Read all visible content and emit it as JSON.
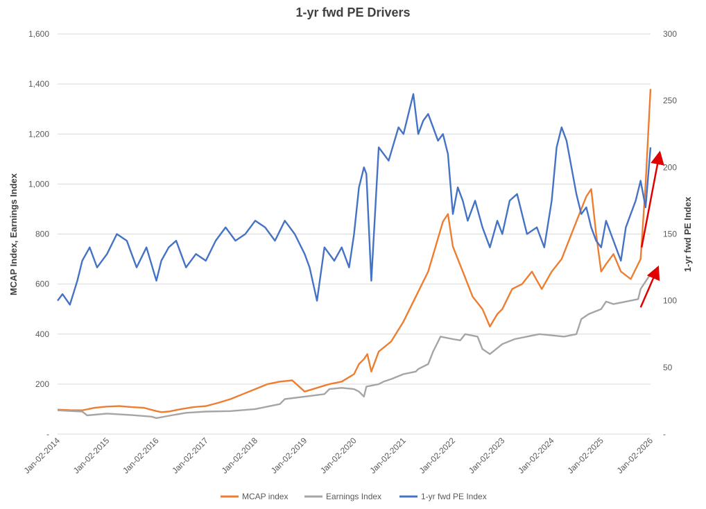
{
  "chart_data": {
    "type": "line",
    "title": "1-yr fwd PE Drivers",
    "ylabel_left": "MCAP Index, Earnings Index",
    "ylabel_right": "1-yr fwd PE Index",
    "xlabel": "",
    "grid": true,
    "legend_position": "bottom",
    "x_ticks": [
      "Jan-02-2014",
      "Jan-02-2015",
      "Jan-02-2016",
      "Jan-02-2017",
      "Jan-02-2018",
      "Jan-02-2019",
      "Jan-02-2020",
      "Jan-02-2021",
      "Jan-02-2022",
      "Jan-02-2023",
      "Jan-02-2024",
      "Jan-02-2025",
      "Jan-02-2026"
    ],
    "y_left": {
      "ticks": [
        "-",
        "200",
        "400",
        "600",
        "800",
        "1,000",
        "1,200",
        "1,400",
        "1,600"
      ],
      "ylim": [
        0,
        1600
      ]
    },
    "y_right": {
      "ticks": [
        "-",
        "50",
        "100",
        "150",
        "200",
        "250",
        "300"
      ],
      "ylim": [
        0,
        300
      ]
    },
    "x_range": [
      2014.0,
      2026.0
    ],
    "series": [
      {
        "name": "MCAP index",
        "axis": "left",
        "color": "#ED7D31",
        "x": [
          2014.0,
          2014.25,
          2014.5,
          2014.75,
          2015.0,
          2015.25,
          2015.5,
          2015.75,
          2016.0,
          2016.1,
          2016.25,
          2016.5,
          2016.75,
          2017.0,
          2017.25,
          2017.5,
          2017.75,
          2018.0,
          2018.25,
          2018.5,
          2018.75,
          2019.0,
          2019.25,
          2019.5,
          2019.75,
          2020.0,
          2020.1,
          2020.2,
          2020.27,
          2020.35,
          2020.5,
          2020.75,
          2021.0,
          2021.25,
          2021.5,
          2021.65,
          2021.8,
          2021.9,
          2022.0,
          2022.2,
          2022.4,
          2022.6,
          2022.75,
          2022.9,
          2023.0,
          2023.2,
          2023.4,
          2023.6,
          2023.8,
          2024.0,
          2024.2,
          2024.4,
          2024.6,
          2024.7,
          2024.8,
          2024.9,
          2025.0,
          2025.1,
          2025.25,
          2025.4,
          2025.6,
          2025.8,
          2025.9,
          2026.0
        ],
        "values": [
          98,
          96,
          95,
          105,
          110,
          112,
          108,
          105,
          92,
          88,
          90,
          100,
          108,
          112,
          125,
          140,
          160,
          180,
          200,
          210,
          215,
          170,
          185,
          200,
          210,
          240,
          280,
          300,
          320,
          250,
          330,
          370,
          450,
          550,
          650,
          750,
          850,
          880,
          750,
          650,
          550,
          500,
          430,
          480,
          500,
          580,
          600,
          650,
          580,
          650,
          700,
          800,
          900,
          950,
          980,
          800,
          650,
          680,
          720,
          650,
          620,
          700,
          1000,
          1380
        ]
      },
      {
        "name": "Earnings Index",
        "axis": "left",
        "color": "#A5A5A5",
        "x": [
          2014.0,
          2014.5,
          2014.6,
          2015.0,
          2015.5,
          2015.9,
          2016.0,
          2016.3,
          2016.6,
          2017.0,
          2017.5,
          2018.0,
          2018.5,
          2018.6,
          2019.0,
          2019.4,
          2019.5,
          2019.75,
          2020.0,
          2020.1,
          2020.2,
          2020.25,
          2020.5,
          2020.6,
          2020.75,
          2021.0,
          2021.25,
          2021.3,
          2021.5,
          2021.6,
          2021.75,
          2022.0,
          2022.15,
          2022.25,
          2022.5,
          2022.6,
          2022.75,
          2023.0,
          2023.25,
          2023.5,
          2023.75,
          2024.0,
          2024.25,
          2024.5,
          2024.6,
          2024.75,
          2025.0,
          2025.1,
          2025.25,
          2025.5,
          2025.75,
          2025.8,
          2026.0
        ],
        "values": [
          95,
          90,
          75,
          82,
          76,
          70,
          64,
          75,
          85,
          90,
          92,
          100,
          120,
          140,
          150,
          160,
          180,
          185,
          180,
          170,
          150,
          190,
          200,
          210,
          220,
          240,
          250,
          260,
          280,
          330,
          390,
          380,
          375,
          400,
          390,
          340,
          320,
          360,
          380,
          390,
          400,
          395,
          390,
          400,
          460,
          480,
          500,
          530,
          520,
          530,
          540,
          580,
          640
        ]
      },
      {
        "name": "1-yr fwd PE Index",
        "axis": "right",
        "color": "#4472C4",
        "x": [
          2014.0,
          2014.1,
          2014.25,
          2014.4,
          2014.5,
          2014.65,
          2014.8,
          2015.0,
          2015.2,
          2015.4,
          2015.6,
          2015.8,
          2016.0,
          2016.1,
          2016.25,
          2016.4,
          2016.6,
          2016.8,
          2017.0,
          2017.2,
          2017.4,
          2017.6,
          2017.8,
          2018.0,
          2018.2,
          2018.4,
          2018.6,
          2018.8,
          2019.0,
          2019.1,
          2019.25,
          2019.4,
          2019.6,
          2019.75,
          2019.9,
          2020.0,
          2020.1,
          2020.2,
          2020.25,
          2020.35,
          2020.5,
          2020.7,
          2020.9,
          2021.0,
          2021.1,
          2021.2,
          2021.3,
          2021.4,
          2021.5,
          2021.6,
          2021.7,
          2021.8,
          2021.9,
          2022.0,
          2022.1,
          2022.2,
          2022.3,
          2022.45,
          2022.6,
          2022.75,
          2022.9,
          2023.0,
          2023.15,
          2023.3,
          2023.5,
          2023.7,
          2023.85,
          2024.0,
          2024.1,
          2024.2,
          2024.3,
          2024.4,
          2024.5,
          2024.6,
          2024.7,
          2024.8,
          2024.9,
          2025.0,
          2025.1,
          2025.2,
          2025.3,
          2025.4,
          2025.5,
          2025.6,
          2025.7,
          2025.8,
          2025.9,
          2026.0
        ],
        "values": [
          100,
          105,
          97,
          115,
          130,
          140,
          125,
          135,
          150,
          145,
          125,
          140,
          115,
          130,
          140,
          145,
          125,
          135,
          130,
          145,
          155,
          145,
          150,
          160,
          155,
          145,
          160,
          150,
          135,
          125,
          100,
          140,
          130,
          140,
          125,
          150,
          185,
          200,
          195,
          115,
          215,
          205,
          230,
          225,
          240,
          255,
          225,
          235,
          240,
          230,
          220,
          225,
          210,
          165,
          185,
          175,
          160,
          175,
          155,
          140,
          160,
          150,
          175,
          180,
          150,
          155,
          140,
          175,
          215,
          230,
          220,
          200,
          180,
          165,
          170,
          155,
          145,
          140,
          160,
          150,
          140,
          130,
          155,
          165,
          175,
          190,
          170,
          215
        ]
      }
    ]
  },
  "legend": {
    "items": [
      {
        "label": "MCAP index",
        "color": "#ED7D31"
      },
      {
        "label": "Earnings Index",
        "color": "#A5A5A5"
      },
      {
        "label": "1-yr fwd PE Index",
        "color": "#4472C4"
      }
    ]
  },
  "annotations": {
    "arrow_color": "#E00000",
    "arrows": [
      {
        "from": {
          "x": 2025.82,
          "y": 140,
          "axis": "right"
        },
        "to": {
          "x": 2026.18,
          "y": 210,
          "axis": "right"
        }
      },
      {
        "from": {
          "x": 2025.8,
          "y": 95,
          "axis": "right"
        },
        "to": {
          "x": 2026.14,
          "y": 124,
          "axis": "right"
        }
      }
    ]
  }
}
